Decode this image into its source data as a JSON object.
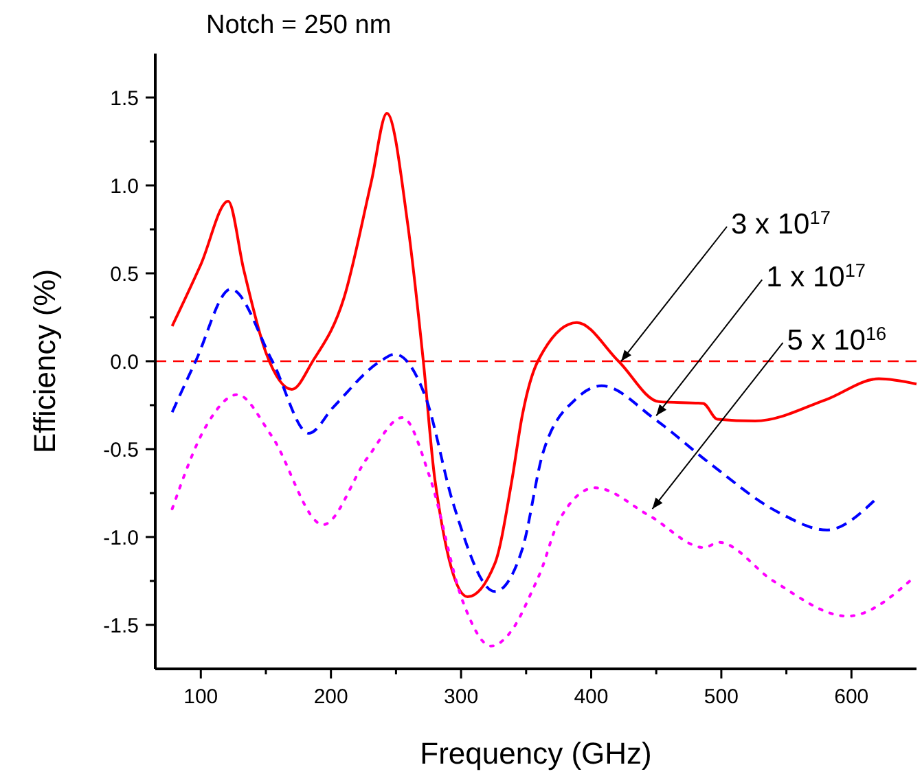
{
  "chart_data": {
    "type": "line",
    "title": "Notch = 250 nm",
    "xlabel": "Frequency (GHz)",
    "ylabel": "Efficiency (%)",
    "xlim": [
      65,
      650
    ],
    "ylim": [
      -1.75,
      1.75
    ],
    "xticks": [
      100,
      {
        "value": 150,
        "label": null
      },
      200,
      {
        "value": 250,
        "label": null
      },
      300,
      {
        "value": 350,
        "label": null
      },
      400,
      {
        "value": 450,
        "label": null
      },
      500,
      {
        "value": 550,
        "label": null
      },
      600
    ],
    "yticks": [
      {
        "value": -1.5,
        "label": "-1.5"
      },
      {
        "value": -1.25,
        "label": null
      },
      {
        "value": -1,
        "label": "-1.0"
      },
      {
        "value": -0.75,
        "label": null
      },
      {
        "value": -0.5,
        "label": "-0.5"
      },
      {
        "value": -0.25,
        "label": null
      },
      {
        "value": 0,
        "label": "0.0"
      },
      {
        "value": 0.25,
        "label": null
      },
      {
        "value": 0.5,
        "label": "0.5"
      },
      {
        "value": 0.75,
        "label": null
      },
      {
        "value": 1,
        "label": "1.0"
      },
      {
        "value": 1.25,
        "label": null
      },
      {
        "value": 1.5,
        "label": "1.5"
      }
    ],
    "series": [
      {
        "color": "#ff0000",
        "line_style": "solid",
        "x": [
          78,
          100,
          121,
          133,
          150,
          170,
          186,
          210,
          231,
          243,
          259,
          271,
          280,
          305,
          326,
          339,
          347,
          359,
          389,
          421,
          452,
          486,
          497,
          526,
          580,
          621,
          650
        ],
        "values": [
          0.2,
          0.55,
          0.91,
          0.52,
          0.05,
          -0.16,
          0,
          0.36,
          1.02,
          1.41,
          0.78,
          0,
          -0.68,
          -1.34,
          -1.15,
          -0.68,
          -0.31,
          0,
          0.22,
          0,
          -0.23,
          -0.24,
          -0.33,
          -0.34,
          -0.22,
          -0.1,
          -0.13
        ]
      },
      {
        "color": "#0000ff",
        "line_style": "dashed",
        "x": [
          78,
          96,
          123,
          155,
          183,
          202,
          238,
          249,
          273,
          294,
          326,
          347,
          363,
          389,
          408,
          449,
          491,
          544,
          581,
          618
        ],
        "values": [
          -0.29,
          0,
          0.41,
          0,
          -0.41,
          -0.26,
          0,
          0.04,
          -0.21,
          -0.81,
          -1.31,
          -1.07,
          -0.52,
          -0.21,
          -0.14,
          -0.33,
          -0.58,
          -0.86,
          -0.96,
          -0.79
        ]
      },
      {
        "color": "#ff00ff",
        "line_style": "dotted",
        "x": [
          78,
          104,
          128,
          154,
          194,
          228,
          255,
          276,
          301,
          323,
          340,
          355,
          361,
          375,
          403,
          445,
          487,
          498,
          540,
          597,
          648
        ],
        "values": [
          -0.84,
          -0.37,
          -0.19,
          -0.42,
          -0.93,
          -0.55,
          -0.32,
          -0.66,
          -1.36,
          -1.62,
          -1.52,
          -1.3,
          -1.2,
          -0.91,
          -0.72,
          -0.88,
          -1.06,
          -1.03,
          -1.25,
          -1.45,
          -1.23
        ]
      }
    ],
    "ref_lines": [
      {
        "axis": "y",
        "value": 0,
        "color": "#ff0000",
        "line_style": "dashed"
      }
    ],
    "annotations": [
      {
        "text": "3 x 10$^{17}$",
        "x": 423,
        "y": 0
      },
      {
        "text": "1 x 10$^{17}$",
        "x": 450,
        "y": -0.31
      },
      {
        "text": "5 x 10$^{16}$",
        "x": 447,
        "y": -0.84
      }
    ]
  }
}
